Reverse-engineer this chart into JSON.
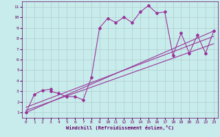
{
  "title": "",
  "xlabel": "Windchill (Refroidissement éolien,°C)",
  "ylabel": "",
  "bg_color": "#c8ecec",
  "grid_color": "#b0cccc",
  "line_color": "#993399",
  "xlim": [
    -0.5,
    23.5
  ],
  "ylim": [
    0.5,
    11.5
  ],
  "xticks": [
    0,
    1,
    2,
    3,
    4,
    5,
    6,
    7,
    8,
    9,
    10,
    11,
    12,
    13,
    14,
    15,
    16,
    17,
    18,
    19,
    20,
    21,
    22,
    23
  ],
  "yticks": [
    1,
    2,
    3,
    4,
    5,
    6,
    7,
    8,
    9,
    10,
    11
  ],
  "series": [
    {
      "x": [
        0,
        1,
        2,
        3,
        3,
        4,
        5,
        6,
        7,
        8,
        9,
        10,
        11,
        12,
        13,
        14,
        15,
        16,
        17,
        18,
        19,
        20,
        21,
        22,
        23
      ],
      "y": [
        1,
        2.7,
        3.1,
        3.2,
        3.0,
        2.8,
        2.5,
        2.5,
        2.2,
        4.3,
        9.0,
        9.9,
        9.5,
        10.0,
        9.5,
        10.5,
        11.1,
        10.4,
        10.5,
        6.4,
        8.5,
        6.6,
        8.3,
        6.6,
        8.7
      ]
    },
    {
      "x": [
        0,
        23
      ],
      "y": [
        1.0,
        8.7
      ]
    },
    {
      "x": [
        0,
        23
      ],
      "y": [
        1.5,
        8.2
      ]
    },
    {
      "x": [
        0,
        23
      ],
      "y": [
        1.2,
        7.5
      ]
    }
  ],
  "marker": "D",
  "markersize": 2.0,
  "linewidth": 0.8,
  "font_color": "#660066",
  "tick_labelsize": 4.5,
  "xlabel_fontsize": 5.0
}
